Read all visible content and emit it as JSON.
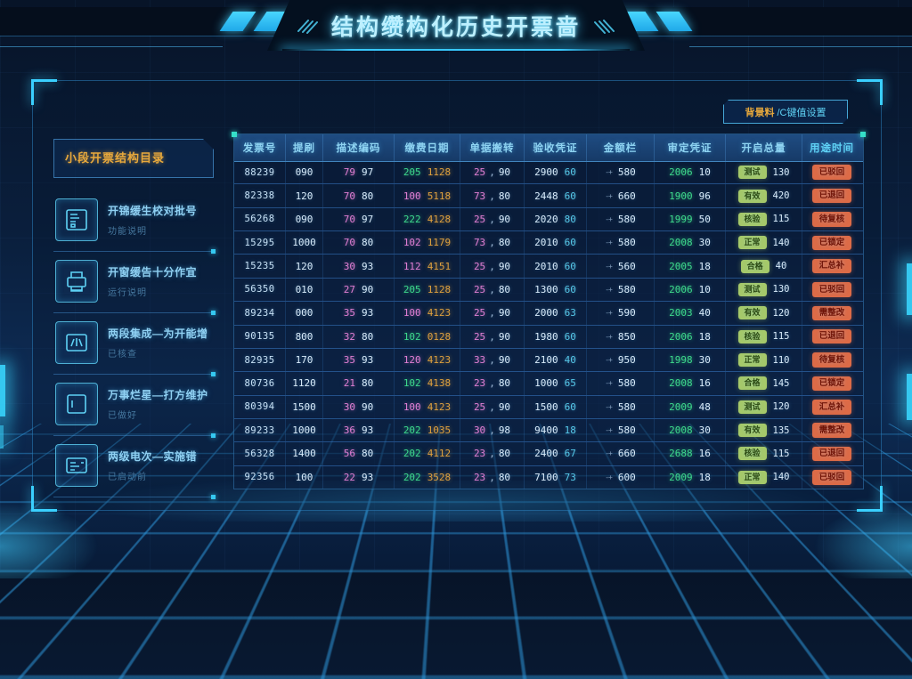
{
  "app": {
    "title": "结构缵构化历史开票啬"
  },
  "tag_button": {
    "prefix": "背景料",
    "label": "/C键值设置"
  },
  "sidebar": {
    "header": "小段开票结构目录",
    "items": [
      {
        "icon": "icon-chip-doc",
        "title": "开锦缓生校对批号",
        "subtitle": "功能说明"
      },
      {
        "icon": "icon-printer",
        "title": "开窗缓告十分作宜",
        "subtitle": "运行说明"
      },
      {
        "icon": "icon-meter",
        "title": "两段集成—为开能增",
        "subtitle": "已核查"
      },
      {
        "icon": "icon-panel",
        "title": "万事烂星—打方维护",
        "subtitle": "已做好"
      },
      {
        "icon": "icon-receipt",
        "title": "两级电次—实施错",
        "subtitle": "已启动前"
      }
    ]
  },
  "table": {
    "columns": [
      "发票号",
      "提刷",
      "描述编码",
      "缴费日期",
      "单据搬转",
      "验收凭证",
      "金额栏",
      "审定凭证",
      "开启总量",
      "用途时间"
    ],
    "rows": [
      {
        "id": "88239",
        "c2": "090",
        "c3": [
          "79",
          "97"
        ],
        "c4": [
          "205",
          "1128"
        ],
        "c4_color": "green",
        "c5": [
          "25",
          "90"
        ],
        "c6": [
          "2900",
          "60"
        ],
        "c7": "580",
        "c8": [
          "2006",
          "10"
        ],
        "badge_g": "测试",
        "c9": "130",
        "badge_r": "已驳回"
      },
      {
        "id": "82338",
        "c2": "120",
        "c3": [
          "70",
          "80"
        ],
        "c4": [
          "100",
          "5118"
        ],
        "c4_color": "pink",
        "c5": [
          "73",
          "80"
        ],
        "c6": [
          "2448",
          "60"
        ],
        "c7": "660",
        "c8": [
          "1900",
          "96"
        ],
        "badge_g": "有效",
        "c9": "420",
        "badge_r": "已退回"
      },
      {
        "id": "56268",
        "c2": "090",
        "c3": [
          "70",
          "97"
        ],
        "c4": [
          "222",
          "4128"
        ],
        "c4_color": "green",
        "c5": [
          "25",
          "90"
        ],
        "c6": [
          "2020",
          "80"
        ],
        "c7": "580",
        "c8": [
          "1999",
          "50"
        ],
        "badge_g": "核验",
        "c9": "115",
        "badge_r": "待复核"
      },
      {
        "id": "15295",
        "c2": "1000",
        "c3": [
          "70",
          "80"
        ],
        "c4": [
          "102",
          "1179"
        ],
        "c4_color": "pink",
        "c5": [
          "73",
          "80"
        ],
        "c6": [
          "2010",
          "60"
        ],
        "c7": "580",
        "c8": [
          "2008",
          "30"
        ],
        "badge_g": "正常",
        "c9": "140",
        "badge_r": "已锁定"
      },
      {
        "id": "15235",
        "c2": "120",
        "c3": [
          "30",
          "93"
        ],
        "c4": [
          "112",
          "4151"
        ],
        "c4_color": "pink",
        "c5": [
          "25",
          "90"
        ],
        "c6": [
          "2010",
          "60"
        ],
        "c7": "560",
        "c8": [
          "2005",
          "18"
        ],
        "badge_g": "合格",
        "c9": "40",
        "badge_r": "汇总补"
      },
      {
        "id": "56350",
        "c2": "010",
        "c3": [
          "27",
          "90"
        ],
        "c4": [
          "205",
          "1128"
        ],
        "c4_color": "green",
        "c5": [
          "25",
          "80"
        ],
        "c6": [
          "1300",
          "60"
        ],
        "c7": "580",
        "c8": [
          "2006",
          "10"
        ],
        "badge_g": "测试",
        "c9": "130",
        "badge_r": "已驳回"
      },
      {
        "id": "89234",
        "c2": "000",
        "c3": [
          "35",
          "93"
        ],
        "c4": [
          "100",
          "4123"
        ],
        "c4_color": "pink",
        "c5": [
          "25",
          "90"
        ],
        "c6": [
          "2000",
          "63"
        ],
        "c7": "590",
        "c8": [
          "2003",
          "40"
        ],
        "badge_g": "有效",
        "c9": "120",
        "badge_r": "需整改"
      },
      {
        "id": "90135",
        "c2": "800",
        "c3": [
          "32",
          "80"
        ],
        "c4": [
          "102",
          "0128"
        ],
        "c4_color": "green",
        "c5": [
          "25",
          "90"
        ],
        "c6": [
          "1980",
          "60"
        ],
        "c7": "850",
        "c8": [
          "2006",
          "18"
        ],
        "badge_g": "核验",
        "c9": "115",
        "badge_r": "已退回"
      },
      {
        "id": "82935",
        "c2": "170",
        "c3": [
          "35",
          "93"
        ],
        "c4": [
          "120",
          "4123"
        ],
        "c4_color": "pink",
        "c5": [
          "33",
          "90"
        ],
        "c6": [
          "2100",
          "40"
        ],
        "c7": "950",
        "c8": [
          "1998",
          "30"
        ],
        "badge_g": "正常",
        "c9": "110",
        "badge_r": "待复核"
      },
      {
        "id": "80736",
        "c2": "1120",
        "c3": [
          "21",
          "80"
        ],
        "c4": [
          "102",
          "4138"
        ],
        "c4_color": "green",
        "c5": [
          "23",
          "80"
        ],
        "c6": [
          "1000",
          "65"
        ],
        "c7": "580",
        "c8": [
          "2008",
          "16"
        ],
        "badge_g": "合格",
        "c9": "145",
        "badge_r": "已锁定"
      },
      {
        "id": "80394",
        "c2": "1500",
        "c3": [
          "30",
          "90"
        ],
        "c4": [
          "100",
          "4123"
        ],
        "c4_color": "pink",
        "c5": [
          "25",
          "90"
        ],
        "c6": [
          "1500",
          "60"
        ],
        "c7": "580",
        "c8": [
          "2009",
          "48"
        ],
        "badge_g": "测试",
        "c9": "120",
        "badge_r": "汇总补"
      },
      {
        "id": "89233",
        "c2": "1000",
        "c3": [
          "36",
          "93"
        ],
        "c4": [
          "202",
          "1035"
        ],
        "c4_color": "green",
        "c5": [
          "30",
          "98"
        ],
        "c6": [
          "9400",
          "18"
        ],
        "c7": "580",
        "c8": [
          "2008",
          "30"
        ],
        "badge_g": "有效",
        "c9": "135",
        "badge_r": "需整改"
      },
      {
        "id": "56328",
        "c2": "1400",
        "c3": [
          "56",
          "80"
        ],
        "c4": [
          "202",
          "4112"
        ],
        "c4_color": "green",
        "c5": [
          "23",
          "80"
        ],
        "c6": [
          "2400",
          "67"
        ],
        "c7": "660",
        "c8": [
          "2688",
          "16"
        ],
        "badge_g": "核验",
        "c9": "115",
        "badge_r": "已退回"
      },
      {
        "id": "92356",
        "c2": "100",
        "c3": [
          "22",
          "93"
        ],
        "c4": [
          "202",
          "3528"
        ],
        "c4_color": "green",
        "c5": [
          "23",
          "80"
        ],
        "c6": [
          "7100",
          "73"
        ],
        "c7": "600",
        "c8": [
          "2009",
          "18"
        ],
        "badge_g": "正常",
        "c9": "140",
        "badge_r": "已驳回"
      }
    ]
  },
  "colors": {
    "accent": "#35c8f0",
    "pink": "#e07fd4",
    "orange": "#dda03f",
    "green": "#3ed98c",
    "green_badge_bg": "#a5c96a",
    "red_badge_bg": "#dd6b47",
    "sidebar_header_orange": "#e8a93c"
  }
}
